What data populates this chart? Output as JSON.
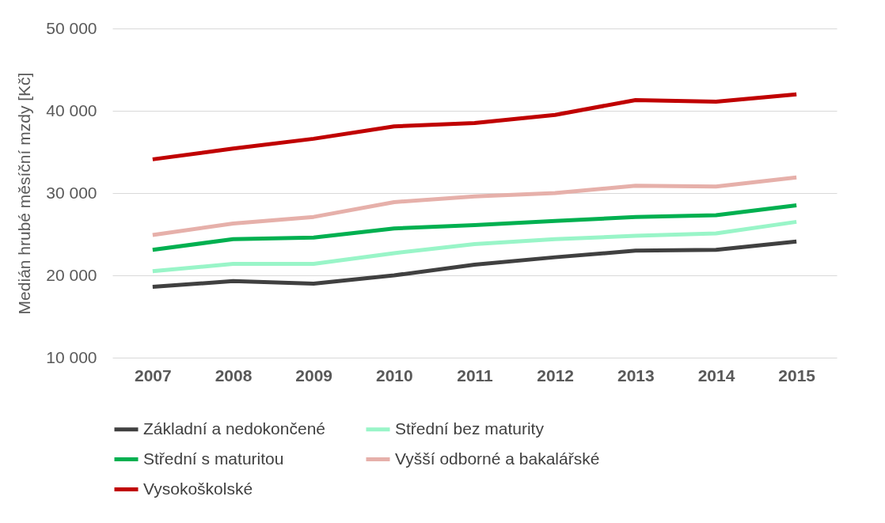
{
  "chart_data": {
    "type": "line",
    "ylabel": "Medián hrubé měsíční mzdy [Kč]",
    "categories": [
      "2007",
      "2008",
      "2009",
      "2010",
      "2011",
      "2012",
      "2013",
      "2014",
      "2015"
    ],
    "ylim": [
      10000,
      50000
    ],
    "yticks": [
      {
        "value": 10000,
        "label": "10 000"
      },
      {
        "value": 20000,
        "label": "20 000"
      },
      {
        "value": 30000,
        "label": "30 000"
      },
      {
        "value": 40000,
        "label": "40 000"
      },
      {
        "value": 50000,
        "label": "50 000"
      }
    ],
    "grid": "y",
    "legend": "bottom",
    "marker": "none",
    "line_style": "solid",
    "series": [
      {
        "name": "Základní a nedokončené",
        "color": "#404040",
        "values": [
          18600,
          19300,
          19000,
          20000,
          21300,
          22200,
          23000,
          23100,
          24100
        ]
      },
      {
        "name": "Střední bez maturity",
        "color": "#99f5c8",
        "values": [
          20500,
          21400,
          21400,
          22700,
          23800,
          24400,
          24800,
          25100,
          26500
        ]
      },
      {
        "name": "Střední s maturitou",
        "color": "#00b050",
        "values": [
          23100,
          24400,
          24600,
          25700,
          26100,
          26600,
          27100,
          27300,
          28500
        ]
      },
      {
        "name": "Vyšší odborné a bakalářské",
        "color": "#e6b0aa",
        "values": [
          24900,
          26300,
          27100,
          28900,
          29600,
          30000,
          30900,
          30800,
          31900
        ]
      },
      {
        "name": "Vysokoškolské",
        "color": "#c00000",
        "values": [
          34100,
          35400,
          36600,
          38100,
          38500,
          39500,
          41300,
          41100,
          42000
        ]
      }
    ]
  }
}
